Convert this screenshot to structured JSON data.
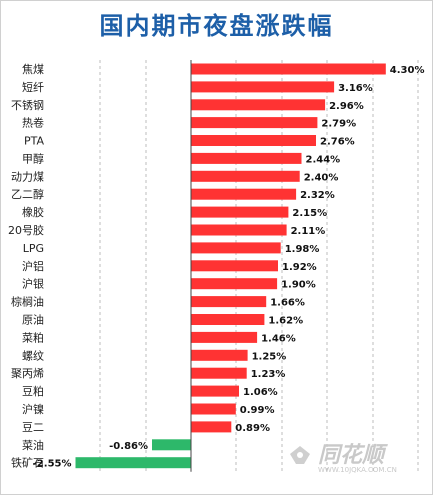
{
  "colors": {
    "positive": "#ff3333",
    "negative": "#2db86a",
    "title": "#1d5fa8",
    "watermark": "#c9c9c9"
  },
  "chart_data": {
    "type": "bar",
    "orientation": "horizontal",
    "title": "国内期市夜盘涨跌幅",
    "categories": [
      "焦煤",
      "短纤",
      "不锈钢",
      "热卷",
      "PTA",
      "甲醇",
      "动力煤",
      "乙二醇",
      "橡胶",
      "20号胶",
      "LPG",
      "沪铝",
      "沪银",
      "棕榈油",
      "原油",
      "菜粕",
      "螺纹",
      "聚丙烯",
      "豆粕",
      "沪镍",
      "豆二",
      "菜油",
      "铁矿石"
    ],
    "values": [
      4.3,
      3.16,
      2.96,
      2.79,
      2.76,
      2.44,
      2.4,
      2.32,
      2.15,
      2.11,
      1.98,
      1.92,
      1.9,
      1.66,
      1.62,
      1.46,
      1.25,
      1.23,
      1.06,
      0.99,
      0.89,
      -0.86,
      -2.55
    ],
    "labels": [
      "4.30%",
      "3.16%",
      "2.96%",
      "2.79%",
      "2.76%",
      "2.44%",
      "2.40%",
      "2.32%",
      "2.15%",
      "2.11%",
      "1.98%",
      "1.92%",
      "1.90%",
      "1.66%",
      "1.62%",
      "1.46%",
      "1.25%",
      "1.23%",
      "1.06%",
      "0.99%",
      "0.89%",
      "-0.86%",
      "-2.55%"
    ],
    "unit": "%",
    "grid": true,
    "legend": "none"
  },
  "watermark": {
    "brand": "同花顺",
    "url": "WWW.10JQKA.COM.CN"
  }
}
